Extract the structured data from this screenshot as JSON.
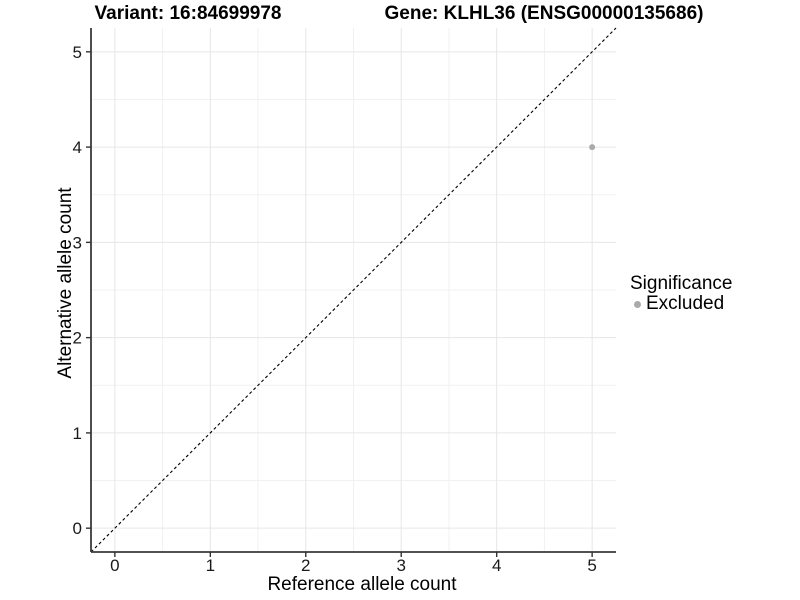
{
  "header": {
    "variant_title": "Variant: 16:84699978",
    "gene_title": "Gene: KLHL36 (ENSG00000135686)"
  },
  "chart_data": {
    "type": "scatter",
    "xlabel": "Reference allele count",
    "ylabel": "Alternative allele count",
    "xlim": [
      -0.25,
      5.25
    ],
    "ylim": [
      -0.25,
      5.25
    ],
    "x_ticks": [
      0,
      1,
      2,
      3,
      4,
      5
    ],
    "y_ticks": [
      0,
      1,
      2,
      3,
      4,
      5
    ],
    "x_minor": [
      0.5,
      1.5,
      2.5,
      3.5,
      4.5
    ],
    "y_minor": [
      0.5,
      1.5,
      2.5,
      3.5,
      4.5
    ],
    "grid": true,
    "identity_line": {
      "style": "dashed",
      "color": "#000000",
      "from": [
        -0.25,
        -0.25
      ],
      "to": [
        5.25,
        5.25
      ]
    },
    "points": [
      {
        "x": 5,
        "y": 4,
        "series": "Excluded"
      }
    ],
    "series_colors": {
      "Excluded": "#aaaaaa"
    },
    "legend": {
      "title": "Significance",
      "position": "right",
      "entries": [
        {
          "label": "Excluded",
          "color": "#aaaaaa",
          "marker": "circle"
        }
      ]
    },
    "colors": {
      "major_grid": "#e6e6e6",
      "minor_grid": "#f1f1f1",
      "axis_line": "#3a3a3a",
      "tick_mark": "#333333",
      "point_fill": "#aaaaaa"
    }
  }
}
